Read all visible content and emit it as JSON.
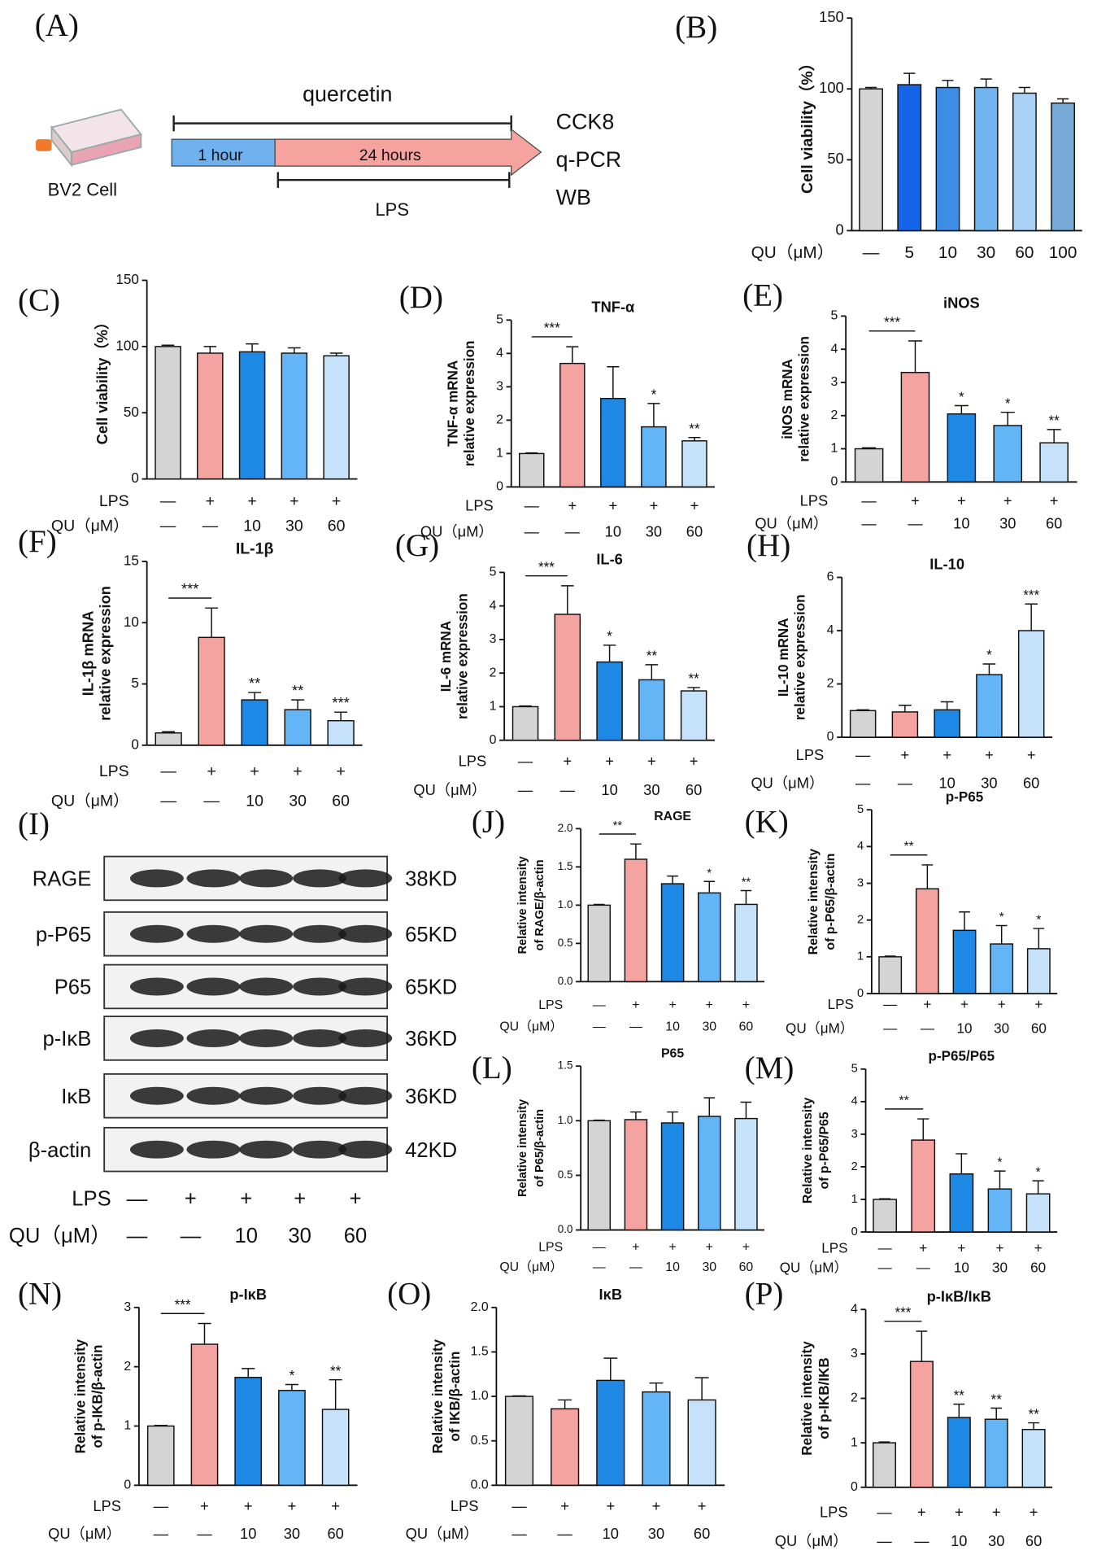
{
  "diagram": {
    "label": "(A)",
    "cell": "BV2 Cell",
    "drug": "quercetin",
    "phase1": "1 hour",
    "phase2": "24 hours",
    "stimulus": "LPS",
    "assays": [
      "CCK8",
      "q-PCR",
      "WB"
    ]
  },
  "blot": {
    "label": "(I)",
    "proteins": [
      {
        "name": "RAGE",
        "size": "38KD"
      },
      {
        "name": "p-P65",
        "size": "65KD"
      },
      {
        "name": "P65",
        "size": "65KD"
      },
      {
        "name": "p-IκB",
        "size": "36KD"
      },
      {
        "name": "IκB",
        "size": "36KD"
      },
      {
        "name": "β-actin",
        "size": "42KD"
      }
    ],
    "conditions": [
      {
        "name": "LPS",
        "labels": [
          "—",
          "+",
          "+",
          "+",
          "+"
        ]
      },
      {
        "name": "QU（μM）",
        "labels": [
          "—",
          "—",
          "10",
          "30",
          "60"
        ]
      }
    ]
  },
  "chart_data": [
    {
      "type": "bar",
      "label": "(B)",
      "ylabel": [
        "Cell viability（%）"
      ],
      "ylim": [
        0,
        150
      ],
      "yticks": [
        0,
        50,
        100,
        150
      ],
      "values": [
        100,
        103,
        101,
        101,
        97,
        90
      ],
      "errors": [
        1,
        8,
        5,
        6,
        4,
        3
      ],
      "colors": [
        "#d4d4d4",
        "#1565e8",
        "#3d8fe6",
        "#6fb3ef",
        "#a9d2f5",
        "#76a9d6"
      ],
      "conditions": [
        {
          "name": "QU（μM）",
          "labels": [
            "—",
            "5",
            "10",
            "30",
            "60",
            "100"
          ]
        }
      ]
    },
    {
      "type": "bar",
      "label": "(C)",
      "ylabel": [
        "Cell viability（%）"
      ],
      "ylim": [
        0,
        150
      ],
      "yticks": [
        0,
        50,
        100,
        150
      ],
      "values": [
        100,
        95,
        96,
        95,
        93
      ],
      "errors": [
        1,
        5,
        6,
        4,
        2
      ],
      "colors": [
        "#d4d4d4",
        "#f4a3a0",
        "#1e88e5",
        "#64b5f6",
        "#c6e2fa"
      ],
      "conditions": [
        {
          "name": "LPS",
          "labels": [
            "—",
            "+",
            "+",
            "+",
            "+"
          ]
        },
        {
          "name": "QU（μM）",
          "labels": [
            "—",
            "—",
            "10",
            "30",
            "60"
          ]
        }
      ]
    },
    {
      "type": "bar",
      "label": "(D)",
      "title": "TNF-α",
      "ylabel": [
        "TNF-α mRNA",
        "relative expression"
      ],
      "ylim": [
        0,
        5
      ],
      "yticks": [
        0,
        1,
        2,
        3,
        4,
        5
      ],
      "values": [
        1,
        3.7,
        2.65,
        1.8,
        1.38
      ],
      "errors": [
        0.02,
        0.5,
        0.95,
        0.7,
        0.1
      ],
      "colors": [
        "#d4d4d4",
        "#f4a3a0",
        "#1e88e5",
        "#64b5f6",
        "#c6e2fa"
      ],
      "significance": [
        null,
        null,
        null,
        "*",
        "**"
      ],
      "significance_bracket": "***",
      "conditions": [
        {
          "name": "LPS",
          "labels": [
            "—",
            "+",
            "+",
            "+",
            "+"
          ]
        },
        {
          "name": "QU（μM）",
          "labels": [
            "—",
            "—",
            "10",
            "30",
            "60"
          ]
        }
      ]
    },
    {
      "type": "bar",
      "label": "(E)",
      "title": "iNOS",
      "ylabel": [
        "iNOS mRNA",
        "relative expression"
      ],
      "ylim": [
        0,
        5
      ],
      "yticks": [
        0,
        1,
        2,
        3,
        4,
        5
      ],
      "values": [
        1,
        3.3,
        2.05,
        1.7,
        1.18
      ],
      "errors": [
        0.03,
        0.95,
        0.25,
        0.4,
        0.4
      ],
      "colors": [
        "#d4d4d4",
        "#f4a3a0",
        "#1e88e5",
        "#64b5f6",
        "#c6e2fa"
      ],
      "significance": [
        null,
        null,
        "*",
        "*",
        "**"
      ],
      "significance_bracket": "***",
      "conditions": [
        {
          "name": "LPS",
          "labels": [
            "—",
            "+",
            "+",
            "+",
            "+"
          ]
        },
        {
          "name": "QU（μM）",
          "labels": [
            "—",
            "—",
            "10",
            "30",
            "60"
          ]
        }
      ]
    },
    {
      "type": "bar",
      "label": "(F)",
      "title": "IL-1β",
      "ylabel": [
        "IL-1β mRNA",
        "relative expression"
      ],
      "ylim": [
        0,
        15
      ],
      "yticks": [
        0,
        5,
        10,
        15
      ],
      "values": [
        1,
        8.8,
        3.7,
        2.9,
        2.0
      ],
      "errors": [
        0.1,
        2.4,
        0.6,
        0.8,
        0.7
      ],
      "colors": [
        "#d4d4d4",
        "#f4a3a0",
        "#1e88e5",
        "#64b5f6",
        "#c6e2fa"
      ],
      "significance": [
        null,
        null,
        "**",
        "**",
        "***"
      ],
      "significance_bracket": "***",
      "conditions": [
        {
          "name": "LPS",
          "labels": [
            "—",
            "+",
            "+",
            "+",
            "+"
          ]
        },
        {
          "name": "QU（μM）",
          "labels": [
            "—",
            "—",
            "10",
            "30",
            "60"
          ]
        }
      ]
    },
    {
      "type": "bar",
      "label": "(G)",
      "title": "IL-6",
      "ylabel": [
        "IL-6 mRNA",
        "relative expression"
      ],
      "ylim": [
        0,
        5
      ],
      "yticks": [
        0,
        1,
        2,
        3,
        4,
        5
      ],
      "values": [
        1,
        3.75,
        2.33,
        1.8,
        1.47
      ],
      "errors": [
        0.02,
        0.85,
        0.5,
        0.45,
        0.1
      ],
      "colors": [
        "#d4d4d4",
        "#f4a3a0",
        "#1e88e5",
        "#64b5f6",
        "#c6e2fa"
      ],
      "significance": [
        null,
        null,
        "*",
        "**",
        "**"
      ],
      "significance_bracket": "***",
      "conditions": [
        {
          "name": "LPS",
          "labels": [
            "—",
            "+",
            "+",
            "+",
            "+"
          ]
        },
        {
          "name": "QU（μM）",
          "labels": [
            "—",
            "—",
            "10",
            "30",
            "60"
          ]
        }
      ]
    },
    {
      "type": "bar",
      "label": "(H)",
      "title": "IL-10",
      "ylabel": [
        "IL-10 mRNA",
        "relative expression"
      ],
      "ylim": [
        0,
        6
      ],
      "yticks": [
        0,
        2,
        4,
        6
      ],
      "values": [
        1,
        0.95,
        1.03,
        2.35,
        4.0
      ],
      "errors": [
        0.03,
        0.25,
        0.3,
        0.4,
        1.0
      ],
      "colors": [
        "#d4d4d4",
        "#f4a3a0",
        "#1e88e5",
        "#64b5f6",
        "#c6e2fa"
      ],
      "significance": [
        null,
        null,
        null,
        "*",
        "***"
      ],
      "conditions": [
        {
          "name": "LPS",
          "labels": [
            "—",
            "+",
            "+",
            "+",
            "+"
          ]
        },
        {
          "name": "QU（μM）",
          "labels": [
            "—",
            "—",
            "10",
            "30",
            "60"
          ]
        }
      ]
    },
    {
      "type": "bar",
      "label": "(J)",
      "title": "RAGE",
      "ylabel": [
        "Relative intensity",
        "of RAGE/β-actin"
      ],
      "ylim": [
        0,
        2
      ],
      "yticks": [
        {
          "value": 0,
          "label": "0.0"
        },
        {
          "value": 0.5,
          "label": "0.5"
        },
        {
          "value": 1,
          "label": "1.0"
        },
        {
          "value": 1.5,
          "label": "1.5"
        },
        {
          "value": 2,
          "label": "2.0"
        }
      ],
      "values": [
        1,
        1.6,
        1.28,
        1.16,
        1.01
      ],
      "errors": [
        0.01,
        0.2,
        0.1,
        0.15,
        0.18
      ],
      "colors": [
        "#d4d4d4",
        "#f4a3a0",
        "#1e88e5",
        "#64b5f6",
        "#c6e2fa"
      ],
      "significance": [
        null,
        null,
        null,
        "*",
        "**"
      ],
      "significance_bracket": "**",
      "conditions": [
        {
          "name": "LPS",
          "labels": [
            "—",
            "+",
            "+",
            "+",
            "+"
          ]
        },
        {
          "name": "QU（μM）",
          "labels": [
            "—",
            "—",
            "10",
            "30",
            "60"
          ]
        }
      ]
    },
    {
      "type": "bar",
      "label": "(K)",
      "title": "p-P65",
      "ylabel": [
        "Relative intensity",
        "of p-P65/β-actin"
      ],
      "ylim": [
        0,
        5
      ],
      "yticks": [
        0,
        1,
        2,
        3,
        4,
        5
      ],
      "values": [
        1,
        2.85,
        1.72,
        1.35,
        1.22
      ],
      "errors": [
        0.02,
        0.65,
        0.5,
        0.5,
        0.55
      ],
      "colors": [
        "#d4d4d4",
        "#f4a3a0",
        "#1e88e5",
        "#64b5f6",
        "#c6e2fa"
      ],
      "significance": [
        null,
        null,
        null,
        "*",
        "*"
      ],
      "significance_bracket": "**",
      "conditions": [
        {
          "name": "LPS",
          "labels": [
            "—",
            "+",
            "+",
            "+",
            "+"
          ]
        },
        {
          "name": "QU（μM）",
          "labels": [
            "—",
            "—",
            "10",
            "30",
            "60"
          ]
        }
      ]
    },
    {
      "type": "bar",
      "label": "(L)",
      "title": "P65",
      "ylabel": [
        "Relative intensity",
        "of P65/β-actin"
      ],
      "ylim": [
        0,
        1.5
      ],
      "yticks": [
        {
          "value": 0,
          "label": "0.0"
        },
        {
          "value": 0.5,
          "label": "0.5"
        },
        {
          "value": 1,
          "label": "1.0"
        },
        {
          "value": 1.5,
          "label": "1.5"
        }
      ],
      "values": [
        1,
        1.01,
        0.98,
        1.04,
        1.02
      ],
      "errors": [
        0.005,
        0.07,
        0.1,
        0.17,
        0.15
      ],
      "colors": [
        "#d4d4d4",
        "#f4a3a0",
        "#1e88e5",
        "#64b5f6",
        "#c6e2fa"
      ],
      "conditions": [
        {
          "name": "LPS",
          "labels": [
            "—",
            "+",
            "+",
            "+",
            "+"
          ]
        },
        {
          "name": "QU（μM）",
          "labels": [
            "—",
            "—",
            "10",
            "30",
            "60"
          ]
        }
      ]
    },
    {
      "type": "bar",
      "label": "(M)",
      "title": "p-P65/P65",
      "ylabel": [
        "Relative intensity",
        "of p-P65/P65"
      ],
      "ylim": [
        0,
        5
      ],
      "yticks": [
        0,
        1,
        2,
        3,
        4,
        5
      ],
      "values": [
        1,
        2.82,
        1.78,
        1.32,
        1.17
      ],
      "errors": [
        0.02,
        0.65,
        0.62,
        0.55,
        0.4
      ],
      "colors": [
        "#d4d4d4",
        "#f4a3a0",
        "#1e88e5",
        "#64b5f6",
        "#c6e2fa"
      ],
      "significance": [
        null,
        null,
        null,
        "*",
        "*"
      ],
      "significance_bracket": "**",
      "conditions": [
        {
          "name": "LPS",
          "labels": [
            "—",
            "+",
            "+",
            "+",
            "+"
          ]
        },
        {
          "name": "QU（μM）",
          "labels": [
            "—",
            "—",
            "10",
            "30",
            "60"
          ]
        }
      ]
    },
    {
      "type": "bar",
      "label": "(N)",
      "title": "p-IκB",
      "ylabel": [
        "Relative intensity",
        "of p-IKB/β-actin"
      ],
      "ylim": [
        0,
        3
      ],
      "yticks": [
        0,
        1,
        2,
        3
      ],
      "values": [
        1,
        2.38,
        1.82,
        1.6,
        1.28
      ],
      "errors": [
        0.01,
        0.35,
        0.15,
        0.1,
        0.5
      ],
      "colors": [
        "#d4d4d4",
        "#f4a3a0",
        "#1e88e5",
        "#64b5f6",
        "#c6e2fa"
      ],
      "significance": [
        null,
        null,
        null,
        "*",
        "**"
      ],
      "significance_bracket": "***",
      "conditions": [
        {
          "name": "LPS",
          "labels": [
            "—",
            "+",
            "+",
            "+",
            "+"
          ]
        },
        {
          "name": "QU（μM）",
          "labels": [
            "—",
            "—",
            "10",
            "30",
            "60"
          ]
        }
      ]
    },
    {
      "type": "bar",
      "label": "(O)",
      "title": "IκB",
      "ylabel": [
        "Relative intensity",
        "of IKB/β-actin"
      ],
      "ylim": [
        0,
        2
      ],
      "yticks": [
        {
          "value": 0,
          "label": "0.0"
        },
        {
          "value": 0.5,
          "label": "0.5"
        },
        {
          "value": 1,
          "label": "1.0"
        },
        {
          "value": 1.5,
          "label": "1.5"
        },
        {
          "value": 2,
          "label": "2.0"
        }
      ],
      "values": [
        1,
        0.86,
        1.18,
        1.05,
        0.96
      ],
      "errors": [
        0.005,
        0.1,
        0.25,
        0.1,
        0.25
      ],
      "colors": [
        "#d4d4d4",
        "#f4a3a0",
        "#1e88e5",
        "#64b5f6",
        "#c6e2fa"
      ],
      "conditions": [
        {
          "name": "LPS",
          "labels": [
            "—",
            "+",
            "+",
            "+",
            "+"
          ]
        },
        {
          "name": "QU（μM）",
          "labels": [
            "—",
            "—",
            "10",
            "30",
            "60"
          ]
        }
      ]
    },
    {
      "type": "bar",
      "label": "(P)",
      "title": "p-IκB/IκB",
      "ylabel": [
        "Relative intensity",
        "of p-IKB/IKB"
      ],
      "ylim": [
        0,
        4
      ],
      "yticks": [
        0,
        1,
        2,
        3,
        4
      ],
      "values": [
        1,
        2.83,
        1.57,
        1.53,
        1.3
      ],
      "errors": [
        0.02,
        0.68,
        0.3,
        0.25,
        0.15
      ],
      "colors": [
        "#d4d4d4",
        "#f4a3a0",
        "#1e88e5",
        "#64b5f6",
        "#c6e2fa"
      ],
      "significance": [
        null,
        null,
        "**",
        "**",
        "**"
      ],
      "significance_bracket": "***",
      "conditions": [
        {
          "name": "LPS",
          "labels": [
            "—",
            "+",
            "+",
            "+",
            "+"
          ]
        },
        {
          "name": "QU（μM）",
          "labels": [
            "—",
            "—",
            "10",
            "30",
            "60"
          ]
        }
      ]
    }
  ]
}
